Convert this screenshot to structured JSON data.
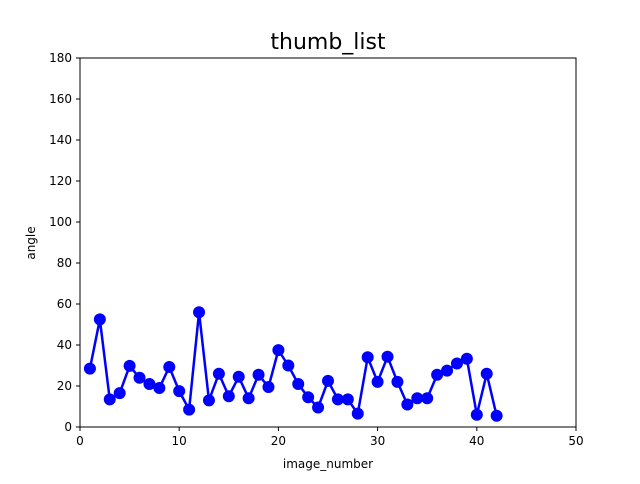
{
  "chart_data": {
    "type": "line",
    "title": "thumb_list",
    "xlabel": "image_number",
    "ylabel": "angle",
    "xlim": [
      0,
      50
    ],
    "ylim": [
      0,
      180
    ],
    "xticks": [
      0,
      10,
      20,
      30,
      40,
      50
    ],
    "yticks": [
      0,
      20,
      40,
      60,
      80,
      100,
      120,
      140,
      160,
      180
    ],
    "grid": false,
    "legend": null,
    "line_color": "#0000ff",
    "marker": "circle",
    "series": [
      {
        "x": [
          1,
          2,
          3,
          4,
          5,
          6,
          7,
          8,
          9,
          10,
          11,
          12,
          13,
          14,
          15,
          16,
          17,
          18,
          19,
          20,
          21,
          22,
          23,
          24,
          25,
          26,
          27,
          28,
          29,
          30,
          31,
          32,
          33,
          34,
          35,
          36,
          37,
          38,
          39,
          40,
          41,
          42
        ],
        "values": [
          28.5,
          52.5,
          13.5,
          16.5,
          29.8,
          24,
          21,
          19,
          29.3,
          17.5,
          8.5,
          56,
          13,
          26,
          15,
          24.5,
          14,
          25.5,
          19.5,
          37.5,
          30,
          21,
          14.5,
          9.5,
          22.5,
          13.5,
          13.5,
          6.5,
          34,
          22,
          34.3,
          22,
          11,
          14,
          14,
          25.5,
          27.5,
          31,
          33.3,
          6,
          26,
          5.5
        ]
      }
    ]
  }
}
